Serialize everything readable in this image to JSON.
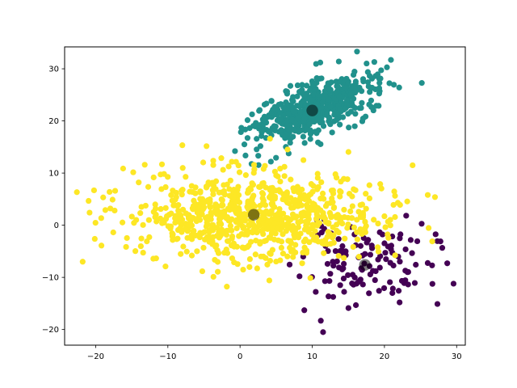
{
  "chart_data": {
    "type": "scatter",
    "title": "",
    "xlabel": "",
    "ylabel": "",
    "xlim": [
      -24.3,
      31.2
    ],
    "ylim": [
      -23,
      34.2
    ],
    "grid": false,
    "x_ticks": [
      -20,
      -10,
      0,
      10,
      20,
      30
    ],
    "y_ticks": [
      -20,
      -10,
      0,
      10,
      20,
      30
    ],
    "x_tick_labels": [
      "−20",
      "−10",
      "0",
      "10",
      "20",
      "30"
    ],
    "y_tick_labels": [
      "−20",
      "−10",
      "0",
      "10",
      "20",
      "30"
    ],
    "clusters": [
      {
        "color": "#440154",
        "center": [
          17.5,
          -7.5
        ],
        "spread": [
          4.5,
          3.8
        ],
        "rotation": 0,
        "count": 120,
        "seed": 11,
        "outliers": [
          [
            28.7,
            -7.3
          ],
          [
            11.5,
            -20.5
          ],
          [
            8.9,
            -16.3
          ],
          [
            21.1,
            -13.0
          ],
          [
            22.1,
            -14.8
          ]
        ]
      },
      {
        "color": "#21918c",
        "center": [
          10.0,
          22.0
        ],
        "spread": [
          4.6,
          2.2
        ],
        "rotation": 32,
        "count": 520,
        "seed": 23,
        "outliers": [
          [
            20.9,
            31.7
          ],
          [
            16.2,
            33.3
          ],
          [
            18.6,
            31.3
          ],
          [
            0.6,
            15.5
          ],
          [
            19.2,
            22.9
          ]
        ]
      },
      {
        "color": "#fde725",
        "center": [
          2.0,
          2.0
        ],
        "spread": [
          8.5,
          4.3
        ],
        "rotation": 0,
        "count": 820,
        "seed": 37,
        "outliers": [
          [
            -21.8,
            -7.0
          ],
          [
            -19.2,
            -3.9
          ],
          [
            27.0,
            5.4
          ],
          [
            26.0,
            5.8
          ],
          [
            23.9,
            11.5
          ],
          [
            -13.2,
            11.6
          ]
        ]
      }
    ],
    "centroids": [
      [
        17.3,
        -7.6
      ],
      [
        10.0,
        22.0
      ],
      [
        1.9,
        2.0
      ]
    ],
    "centroid_color": "#000000"
  }
}
